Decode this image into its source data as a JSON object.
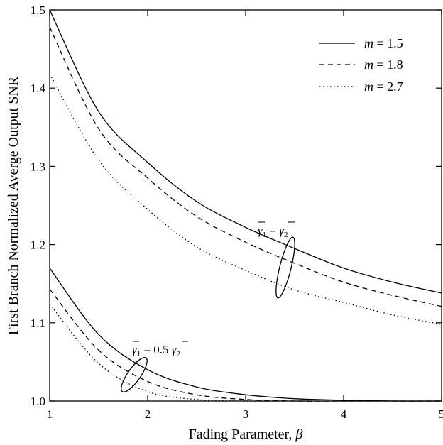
{
  "chart_data": {
    "type": "line",
    "xlabel": "Fading Parameter, ",
    "xlabel_symbol": "β",
    "ylabel": "First Branch Normalized Averge Output SNR",
    "xlim": [
      1,
      5
    ],
    "ylim": [
      1.0,
      1.5
    ],
    "xticks": [
      "1",
      "2",
      "3",
      "4",
      "5"
    ],
    "yticks": [
      "1.0",
      "1.1",
      "1.2",
      "1.3",
      "1.4",
      "1.5"
    ],
    "grid": false,
    "legend_position": "top-right",
    "legend": [
      {
        "var": "m",
        "text": " = 1.5",
        "style": "solid"
      },
      {
        "var": "m",
        "text": " = 1.8",
        "style": "dashed"
      },
      {
        "var": "m",
        "text": " = 2.7",
        "style": "dotted"
      }
    ],
    "annotations": {
      "upper": {
        "left": "γ",
        "left_sub": "1",
        "mid": " = ",
        "right": "γ",
        "right_sub": "2"
      },
      "lower": {
        "left": "γ",
        "left_sub": "1",
        "mid": " = 0.5 ",
        "right": "γ",
        "right_sub": "2"
      }
    },
    "x": [
      1.0,
      1.5,
      2.0,
      2.5,
      3.0,
      3.5,
      4.0,
      4.5,
      5.0
    ],
    "series": [
      {
        "group": "equal",
        "m": 1.5,
        "style": "solid",
        "values": [
          1.5,
          1.37,
          1.305,
          1.255,
          1.222,
          1.195,
          1.17,
          1.152,
          1.138
        ]
      },
      {
        "group": "equal",
        "m": 1.8,
        "style": "dashed",
        "values": [
          1.478,
          1.348,
          1.285,
          1.236,
          1.203,
          1.176,
          1.152,
          1.135,
          1.121
        ]
      },
      {
        "group": "equal",
        "m": 2.7,
        "style": "dotted",
        "values": [
          1.418,
          1.308,
          1.245,
          1.197,
          1.167,
          1.142,
          1.126,
          1.11,
          1.098
        ]
      },
      {
        "group": "half",
        "m": 1.5,
        "style": "solid",
        "values": [
          1.17,
          1.085,
          1.04,
          1.018,
          1.008,
          1.003,
          1.001,
          1.0,
          1.0
        ]
      },
      {
        "group": "half",
        "m": 1.8,
        "style": "dashed",
        "values": [
          1.143,
          1.065,
          1.025,
          1.008,
          1.002,
          1.0,
          1.0,
          1.0,
          1.0
        ]
      },
      {
        "group": "half",
        "m": 2.7,
        "style": "dotted",
        "values": [
          1.124,
          1.048,
          1.012,
          1.002,
          1.0,
          1.0,
          1.0,
          1.0,
          1.0
        ]
      }
    ]
  }
}
